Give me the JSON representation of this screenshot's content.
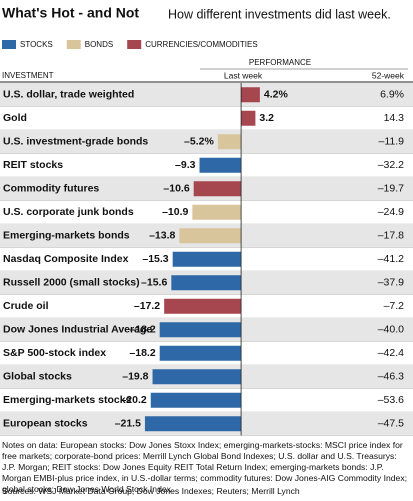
{
  "chart_data": {
    "type": "bar",
    "orientation": "horizontal",
    "title": "What's Hot - and Not",
    "subtitle": "How different investments did last week.",
    "legend": [
      {
        "name": "STOCKS",
        "color": "#2f68a6"
      },
      {
        "name": "BONDS",
        "color": "#d9c59b"
      },
      {
        "name": "CURRENCIES/COMMODITIES",
        "color": "#a6464f"
      }
    ],
    "group_header": "PERFORMANCE",
    "column_headers": [
      "INVESTMENT",
      "Last week",
      "52-week"
    ],
    "categories": [
      "U.S. dollar, trade weighted",
      "Gold",
      "U.S. investment-grade bonds",
      "REIT stocks",
      "Commodity futures",
      "U.S. corporate junk bonds",
      "Emerging-markets bonds",
      "Nasdaq Composite Index",
      "Russell 2000 (small stocks)",
      "Crude oil",
      "Dow Jones Industrial Average",
      "S&P 500-stock index",
      "Global stocks",
      "Emerging-markets stocks",
      "European stocks"
    ],
    "values": [
      4.2,
      3.2,
      -5.2,
      -9.3,
      -10.6,
      -10.9,
      -13.8,
      -15.3,
      -15.6,
      -17.2,
      -18.2,
      -18.2,
      -19.8,
      -20.2,
      -21.5
    ],
    "value_labels": [
      "4.2%",
      "3.2",
      "–5.2%",
      "–9.3",
      "–10.6",
      "–10.9",
      "–13.8",
      "–15.3",
      "–15.6",
      "–17.2",
      "–18.2",
      "–18.2",
      "–19.8",
      "–20.2",
      "–21.5"
    ],
    "bar_colors": [
      "#a6464f",
      "#a6464f",
      "#d9c59b",
      "#2f68a6",
      "#a6464f",
      "#d9c59b",
      "#d9c59b",
      "#2f68a6",
      "#2f68a6",
      "#a6464f",
      "#2f68a6",
      "#2f68a6",
      "#2f68a6",
      "#2f68a6",
      "#2f68a6"
    ],
    "week52": [
      "6.9%",
      "14.3",
      "–11.9",
      "–32.2",
      "–19.7",
      "–24.9",
      "–17.8",
      "–41.2",
      "–37.9",
      "–7.2",
      "–40.0",
      "–42.4",
      "–46.3",
      "–53.6",
      "–47.5"
    ],
    "xlim": [
      -22,
      7
    ],
    "notes": "Notes on data: European stocks: Dow Jones Stoxx Index; emerging-markets-stocks: MSCI price index for free markets; corporate-bond prices: Merrill Lynch Global Bond Indexes; U.S. dollar and U.S. Treasurys: J.P. Morgan; REIT stocks: Dow Jones Equity REIT Total Return Index; emerging-markets bonds: J.P. Morgan EMBI-plus price index, in U.S.-dollar terms; commodity futures: Dow Jones-AIG Commodity Index; global stocks: Dow Jones World Stock Index",
    "sources": "Sources: WSJ Market Data Group; Dow Jones Indexes; Reuters; Merrill Lynch"
  }
}
